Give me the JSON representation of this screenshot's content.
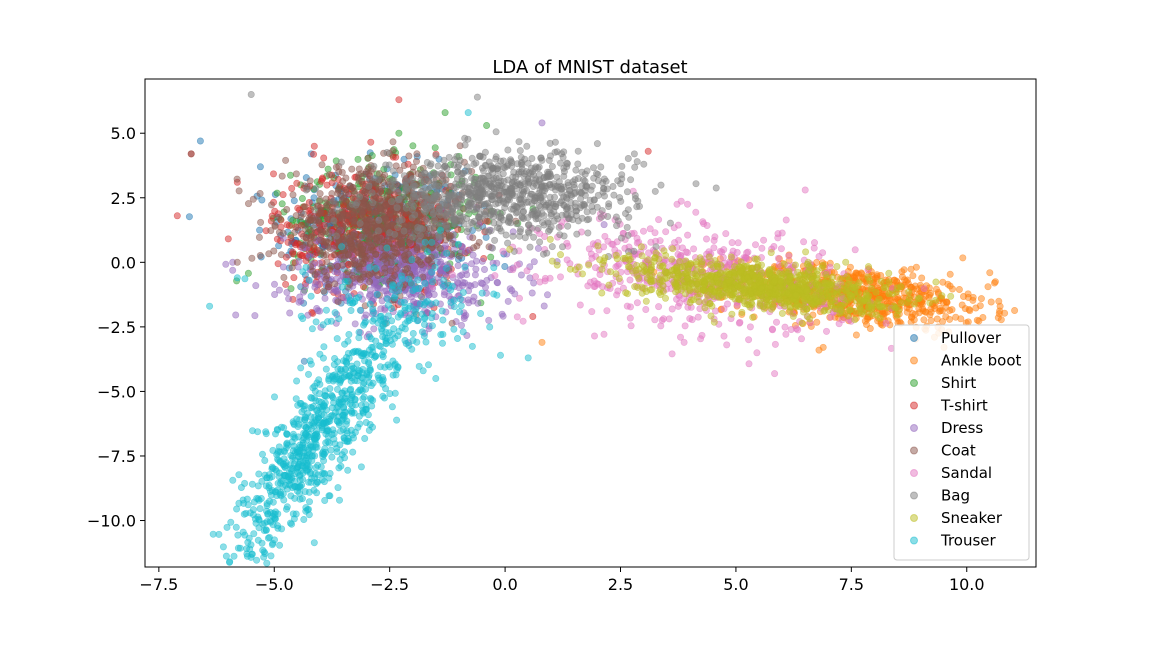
{
  "chart_data": {
    "type": "scatter",
    "title": "LDA of MNIST dataset",
    "xlabel": "",
    "ylabel": "",
    "xlim": [
      -7.8,
      11.5
    ],
    "ylim": [
      -11.8,
      7.1
    ],
    "xticks": [
      -7.5,
      -5.0,
      -2.5,
      0.0,
      2.5,
      5.0,
      7.5,
      10.0
    ],
    "xtick_labels": [
      "−7.5",
      "−5.0",
      "−2.5",
      "0.0",
      "2.5",
      "5.0",
      "7.5",
      "10.0"
    ],
    "yticks": [
      5.0,
      2.5,
      0.0,
      -2.5,
      -5.0,
      -7.5,
      -10.0
    ],
    "ytick_labels": [
      "5.0",
      "2.5",
      "0.0",
      "−2.5",
      "−5.0",
      "−7.5",
      "−10.0"
    ],
    "grid": false,
    "legend_position": "lower-right",
    "marker_alpha": 0.5,
    "series": [
      {
        "name": "Pullover",
        "color": "#1f77b4",
        "center": [
          -2.8,
          1.2
        ],
        "spread": [
          1.0,
          1.2
        ],
        "count": 420,
        "outliers": [
          [
            -6.6,
            4.7
          ],
          [
            -5.3,
            3.7
          ],
          [
            -4.2,
            4.2
          ]
        ]
      },
      {
        "name": "Ankle boot",
        "color": "#ff7f0e",
        "center": [
          7.6,
          -1.3
        ],
        "spread": [
          1.4,
          0.55
        ],
        "count": 700,
        "outliers": [
          [
            10.5,
            -0.4
          ],
          [
            10.6,
            -0.8
          ],
          [
            6.8,
            -3.4
          ],
          [
            0.8,
            -3.1
          ],
          [
            9.3,
            -2.9
          ]
        ]
      },
      {
        "name": "Shirt",
        "color": "#2ca02c",
        "center": [
          -2.6,
          1.6
        ],
        "spread": [
          1.0,
          1.1
        ],
        "count": 420,
        "outliers": [
          [
            -1.3,
            5.8
          ],
          [
            -0.4,
            5.3
          ],
          [
            -1.0,
            4.1
          ],
          [
            -2.3,
            5.0
          ]
        ]
      },
      {
        "name": "T-shirt",
        "color": "#d62728",
        "center": [
          -3.0,
          1.2
        ],
        "spread": [
          1.0,
          1.2
        ],
        "count": 420,
        "outliers": [
          [
            -7.1,
            1.8
          ],
          [
            -6.8,
            4.2
          ],
          [
            -5.8,
            3.1
          ],
          [
            -2.3,
            6.3
          ],
          [
            3.1,
            4.3
          ],
          [
            0.6,
            -2.1
          ],
          [
            -2.1,
            3.8
          ]
        ]
      },
      {
        "name": "Dress",
        "color": "#9467bd",
        "center": [
          -2.2,
          -0.5
        ],
        "spread": [
          1.2,
          0.9
        ],
        "count": 520,
        "outliers": [
          [
            0.8,
            5.4
          ],
          [
            -5.9,
            0.0
          ],
          [
            -5.4,
            -0.9
          ]
        ]
      },
      {
        "name": "Coat",
        "color": "#8c564b",
        "center": [
          -2.8,
          1.4
        ],
        "spread": [
          1.0,
          1.1
        ],
        "count": 700,
        "outliers": [
          [
            -6.8,
            4.2
          ],
          [
            -5.8,
            0.0
          ]
        ]
      },
      {
        "name": "Sandal",
        "color": "#e377c2",
        "center": [
          4.2,
          -0.5
        ],
        "spread": [
          1.6,
          1.0
        ],
        "count": 520,
        "outliers": [
          [
            6.5,
            2.8
          ],
          [
            5.3,
            2.2
          ],
          [
            4.3,
            1.5
          ],
          [
            3.8,
            -2.9
          ],
          [
            4.8,
            -3.2
          ]
        ]
      },
      {
        "name": "Bag",
        "color": "#7f7f7f",
        "center": [
          0.0,
          2.6
        ],
        "spread": [
          1.4,
          0.8
        ],
        "count": 800,
        "outliers": [
          [
            -5.5,
            6.5
          ],
          [
            -0.6,
            6.4
          ],
          [
            2.0,
            4.6
          ],
          [
            2.8,
            4.2
          ]
        ]
      },
      {
        "name": "Sneaker",
        "color": "#bcbd22",
        "center": [
          5.5,
          -0.9
        ],
        "spread": [
          1.4,
          0.45
        ],
        "count": 900,
        "outliers": [
          [
            0.1,
            0.5
          ],
          [
            1.2,
            0.3
          ]
        ]
      },
      {
        "name": "Trouser",
        "color": "#17becf",
        "center": [
          -4.0,
          -6.5
        ],
        "spread": [
          0.9,
          2.0
        ],
        "count": 900,
        "outliers": [
          [
            -6.4,
            -1.7
          ],
          [
            -5.8,
            -0.6
          ],
          [
            -0.8,
            5.8
          ],
          [
            -0.1,
            -3.6
          ],
          [
            0.5,
            -3.7
          ],
          [
            -1.5,
            -4.5
          ]
        ]
      }
    ]
  }
}
